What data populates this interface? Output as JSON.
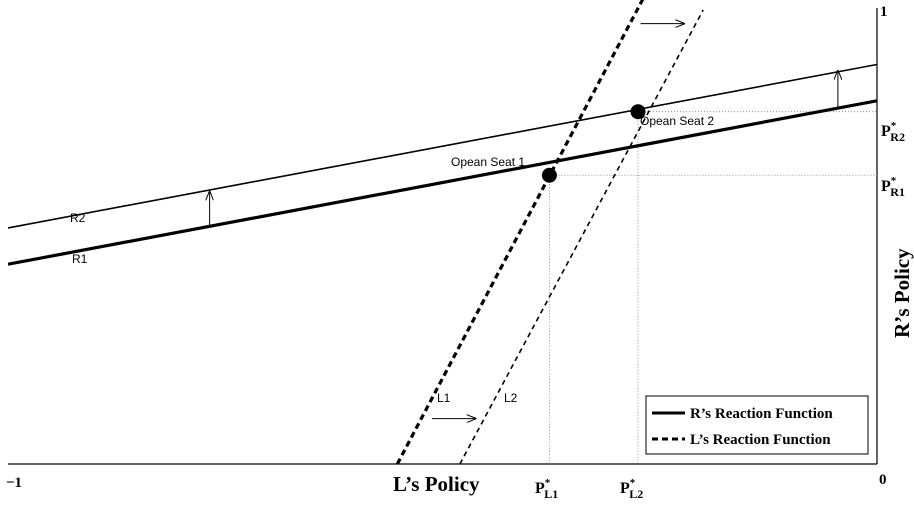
{
  "chart_data": {
    "type": "line",
    "xlabel": "L’s Policy",
    "ylabel": "R’s Policy",
    "xlim": [
      -1,
      0
    ],
    "ylim": [
      0,
      1
    ],
    "x_ticks": [
      "−1",
      "0"
    ],
    "y_ticks": [
      "1"
    ],
    "series": [
      {
        "name": "R1",
        "style": "solid-thick",
        "points": [
          [
            -1,
            0.44
          ],
          [
            0,
            0.8
          ]
        ]
      },
      {
        "name": "R2",
        "style": "solid-thin",
        "points": [
          [
            -1,
            0.52
          ],
          [
            0,
            0.88
          ]
        ]
      },
      {
        "name": "L1",
        "style": "dashed-thick",
        "points": [
          [
            -0.552,
            0.0
          ],
          [
            -0.265,
            1.04
          ]
        ]
      },
      {
        "name": "L2",
        "style": "dashed-thin",
        "points": [
          [
            -0.48,
            0.0
          ],
          [
            -0.2,
            1.0
          ]
        ]
      }
    ],
    "equilibria": [
      {
        "label": "Opean Seat 1",
        "x": -0.377,
        "y": 0.636
      },
      {
        "label": "Opean Seat 2",
        "x": -0.275,
        "y": 0.776
      }
    ],
    "arrows": [
      {
        "from": [
          -0.768,
          0.52
        ],
        "to": [
          -0.768,
          0.6
        ]
      },
      {
        "from": [
          -0.045,
          0.786
        ],
        "to": [
          -0.045,
          0.866
        ]
      },
      {
        "from": [
          -0.272,
          0.97
        ],
        "to": [
          -0.222,
          0.97
        ]
      },
      {
        "from": [
          -0.512,
          0.1
        ],
        "to": [
          -0.462,
          0.1
        ]
      }
    ],
    "star_labels": {
      "pr2": {
        "base": "P",
        "sub": "R2",
        "sup": "*"
      },
      "pr1": {
        "base": "P",
        "sub": "R1",
        "sup": "*"
      },
      "pl1": {
        "base": "P",
        "sub": "L1",
        "sup": "*"
      },
      "pl2": {
        "base": "P",
        "sub": "L2",
        "sup": "*"
      }
    },
    "legend": {
      "position": "bottom-right",
      "entries": [
        {
          "label": "R’s Reaction Function",
          "style": "solid"
        },
        {
          "label": "L’s Reaction Function",
          "style": "dashed"
        }
      ]
    },
    "grid": false
  }
}
